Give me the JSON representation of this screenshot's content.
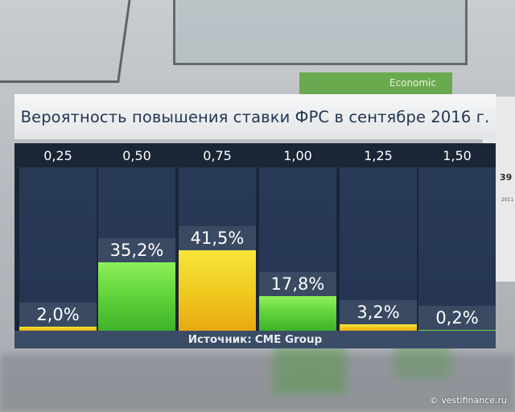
{
  "background": {
    "screen_text": "Economic",
    "side_number": "39",
    "side_small": "2011"
  },
  "chart_data": {
    "type": "bar",
    "title": "Вероятность повышения ставки ФРС в сентябре 2016 г.",
    "categories": [
      "0,25",
      "0,50",
      "0,75",
      "1,00",
      "1,25",
      "1,50"
    ],
    "values": [
      2.0,
      35.2,
      41.5,
      17.8,
      3.2,
      0.2
    ],
    "value_labels": [
      "2,0%",
      "35,2%",
      "41,5%",
      "17,8%",
      "3,2%",
      "0,2%"
    ],
    "bar_colors": [
      "yellow",
      "green",
      "yellow",
      "green",
      "yellow",
      "green"
    ],
    "ylim": [
      0,
      70
    ],
    "grid": false,
    "legend": "none"
  },
  "source": {
    "label": "Источник:",
    "value": "CME Group"
  },
  "watermark": "© vestifinance.ru",
  "colors": {
    "title_text": "#233652",
    "panel_dark": "#253551",
    "header_dark": "#1a2535",
    "label_bg": "#3a4a63",
    "yellow": "#f0c81e",
    "green": "#5fd23b"
  }
}
